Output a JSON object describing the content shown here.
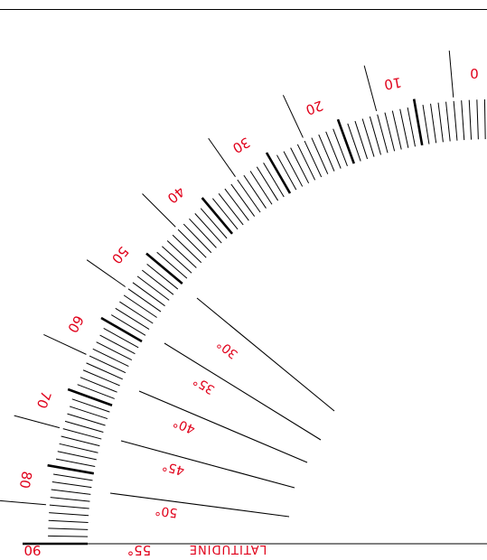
{
  "title": "LATITUDINE",
  "latitude_value": "55°",
  "corner_label": "90",
  "scale": {
    "labels": [
      {
        "text": "0",
        "deg": 0
      },
      {
        "text": "10",
        "deg": 10
      },
      {
        "text": "20",
        "deg": 20
      },
      {
        "text": "30",
        "deg": 30
      },
      {
        "text": "40",
        "deg": 40
      },
      {
        "text": "50",
        "deg": 50
      },
      {
        "text": "60",
        "deg": 60
      },
      {
        "text": "70",
        "deg": 70
      },
      {
        "text": "80",
        "deg": 80
      }
    ]
  },
  "latitude_lines": [
    {
      "text": "30°"
    },
    {
      "text": "35°"
    },
    {
      "text": "40°"
    },
    {
      "text": "45°"
    },
    {
      "text": "50°"
    }
  ],
  "colors": {
    "label": "#e0001a",
    "line": "#000000"
  }
}
